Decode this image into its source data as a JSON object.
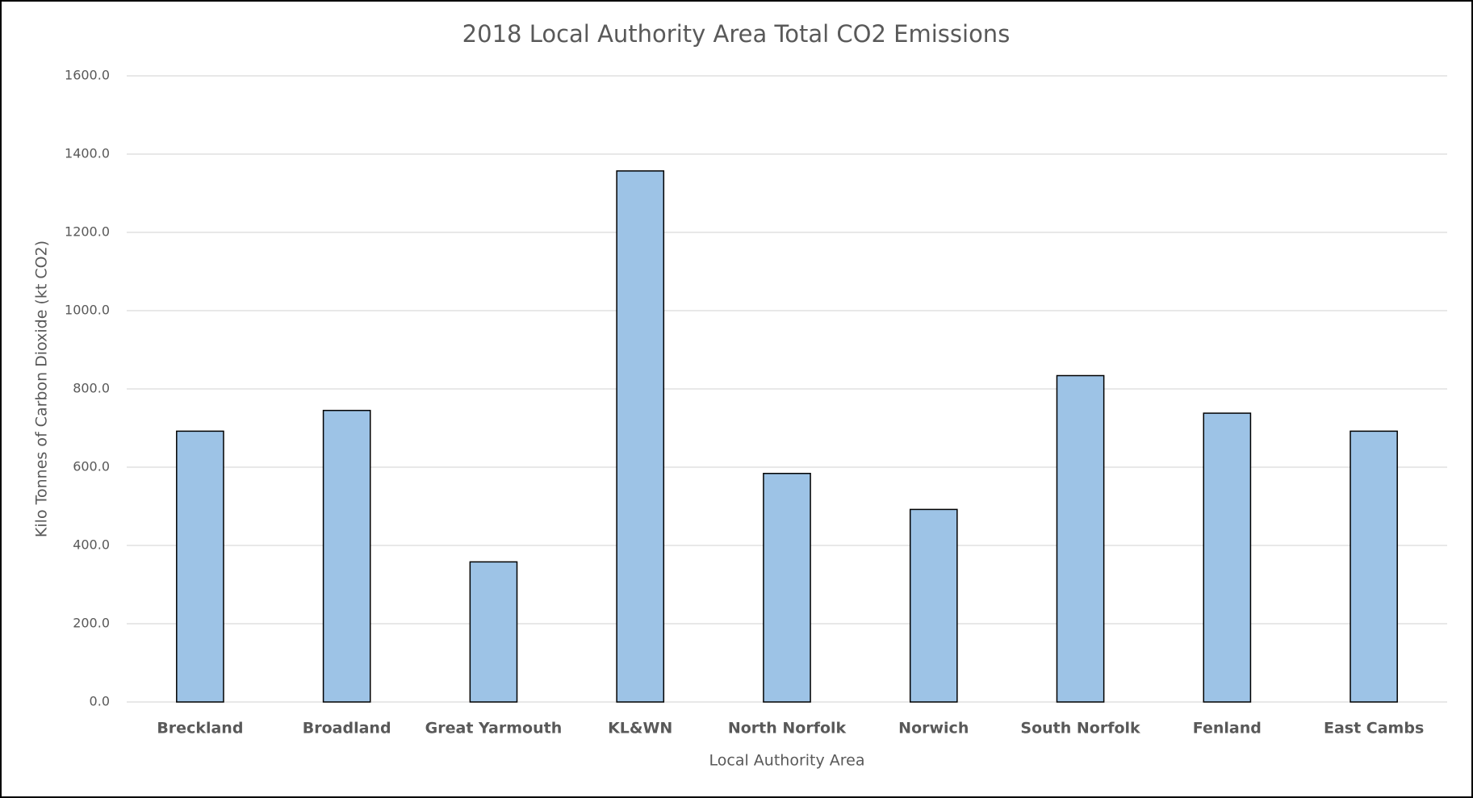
{
  "chart_data": {
    "type": "bar",
    "title": "2018 Local Authority Area Total CO2 Emissions",
    "x_label": "Local Authority Area",
    "y_label": "Kilo Tonnes of Carbon Dioxide (kt CO2)",
    "categories": [
      "Breckland",
      "Broadland",
      "Great Yarmouth",
      "KL&WN",
      "North Norfolk",
      "Norwich",
      "South Norfolk",
      "Fenland",
      "East Cambs"
    ],
    "values": [
      692,
      745,
      358,
      1357,
      584,
      492,
      834,
      738,
      692
    ],
    "color": "#9dc3e6",
    "ylim": [
      0,
      1600
    ],
    "yticks": [
      {
        "value": 0,
        "label": "0.0"
      },
      {
        "value": 200,
        "label": "200.0"
      },
      {
        "value": 400,
        "label": "400.0"
      },
      {
        "value": 600,
        "label": "600.0"
      },
      {
        "value": 800,
        "label": "800.0"
      },
      {
        "value": 1000,
        "label": "1000.0"
      },
      {
        "value": 1200,
        "label": "1200.0"
      },
      {
        "value": 1400,
        "label": "1400.0"
      },
      {
        "value": 1600,
        "label": "1600.0"
      }
    ],
    "grid": true
  }
}
